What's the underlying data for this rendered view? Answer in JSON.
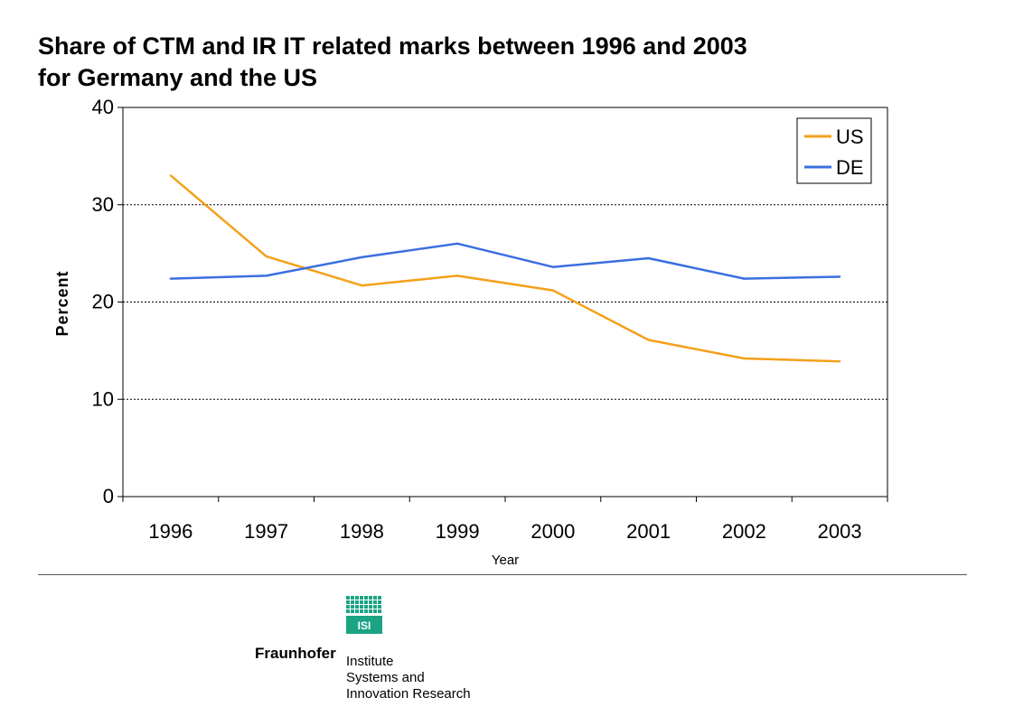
{
  "title_lines": [
    "Share of CTM and IR IT related marks between 1996 and 2003",
    "for Germany and the US"
  ],
  "chart_data": {
    "type": "line",
    "categories": [
      "1996",
      "1997",
      "1998",
      "1999",
      "2000",
      "2001",
      "2002",
      "2003"
    ],
    "series": [
      {
        "name": "US",
        "color": "#F5A01A",
        "values": [
          33.0,
          24.7,
          21.7,
          22.7,
          21.2,
          16.1,
          14.2,
          13.9
        ]
      },
      {
        "name": "DE",
        "color": "#3A6FE0",
        "values": [
          22.4,
          22.7,
          24.6,
          26.0,
          23.6,
          24.5,
          22.4,
          22.6
        ]
      }
    ],
    "xlabel": "Year",
    "ylabel": "Percent",
    "ylim": [
      0,
      40
    ],
    "yticks": [
      "0",
      "10",
      "20",
      "30",
      "40"
    ],
    "grid": "horizontal dotted",
    "legend_position": "top-right"
  },
  "logo": {
    "badge_text": "ISI",
    "brand": "Fraunhofer",
    "institute_lines": [
      "Institute",
      "Systems and",
      "Innovation Research"
    ],
    "badge_color": "#1BA384"
  }
}
